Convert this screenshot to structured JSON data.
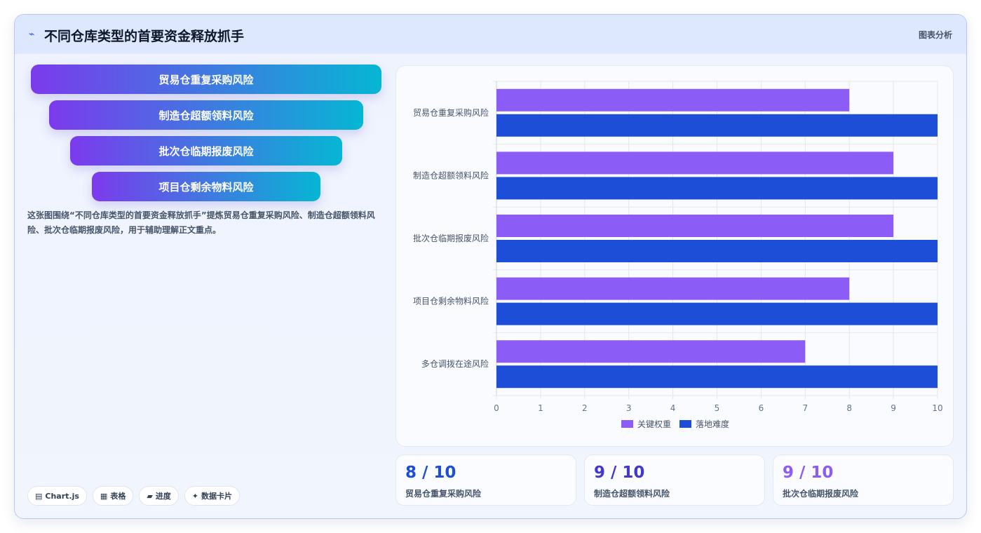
{
  "header": {
    "icon": "trend-icon",
    "title": "不同仓库类型的首要资金释放抓手",
    "right_label": "图表分析"
  },
  "funnel": {
    "items": [
      "贸易仓重复采购风险",
      "制造仓超额领料风险",
      "批次仓临期报废风险",
      "项目仓剩余物料风险"
    ]
  },
  "description": "这张图围绕“不同仓库类型的首要资金释放抓手”提炼贸易仓重复采购风险、制造仓超额领料风险、批次仓临期报废风险，用于辅助理解正文重点。",
  "pills": [
    {
      "icon": "chart-icon",
      "glyph": "▤",
      "label": "Chart.js"
    },
    {
      "icon": "table-icon",
      "glyph": "▦",
      "label": "表格"
    },
    {
      "icon": "progress-icon",
      "glyph": "▰",
      "label": "进度"
    },
    {
      "icon": "sparkle-icon",
      "glyph": "✦",
      "label": "数据卡片"
    }
  ],
  "chart_data": {
    "type": "bar",
    "orientation": "horizontal",
    "categories": [
      "贸易仓重复采购风险",
      "制造仓超额领料风险",
      "批次仓临期报废风险",
      "项目仓剩余物料风险",
      "多仓调拨在途风险"
    ],
    "series": [
      {
        "name": "关键权重",
        "color": "#8b5cf6",
        "values": [
          8,
          9,
          9,
          8,
          7
        ]
      },
      {
        "name": "落地难度",
        "color": "#1d4ed8",
        "values": [
          10,
          10,
          10,
          10,
          10
        ]
      }
    ],
    "xlim": [
      0,
      10
    ],
    "xticks": [
      "0",
      "1",
      "2",
      "3",
      "4",
      "5",
      "6",
      "7",
      "8",
      "9",
      "10"
    ],
    "grid": true,
    "legend_position": "bottom"
  },
  "stats": [
    {
      "value": "8 / 10",
      "label": "贸易仓重复采购风险",
      "color": "#1d4ed8"
    },
    {
      "value": "9 / 10",
      "label": "制造仓超额领料风险",
      "color": "#4338ca"
    },
    {
      "value": "9 / 10",
      "label": "批次仓临期报废风险",
      "color": "#8b5cf6"
    }
  ]
}
